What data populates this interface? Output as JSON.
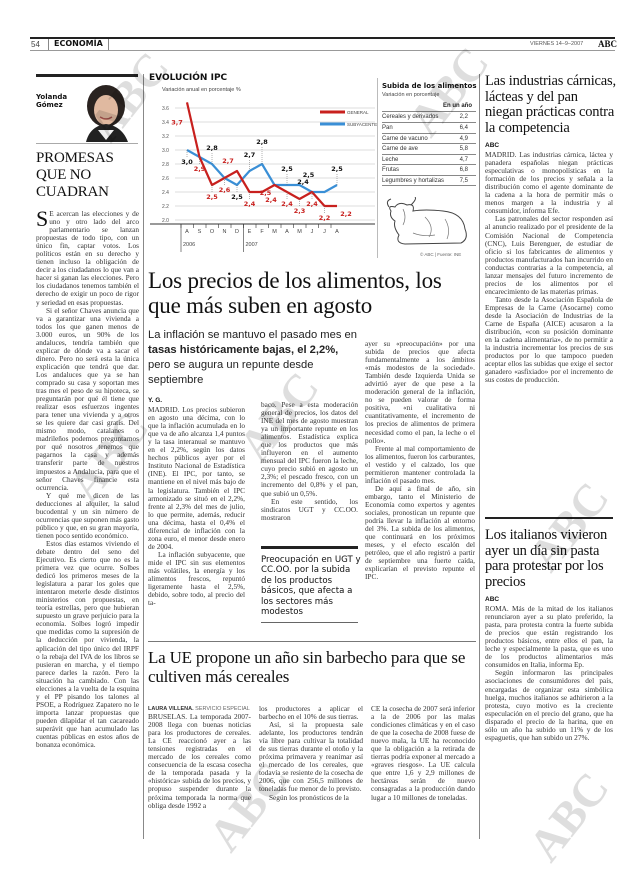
{
  "header": {
    "page_number": "54",
    "section": "ECONOMÍA",
    "date": "VIERNES 14–9–2007",
    "logo": "ABC"
  },
  "watermark": "ABC",
  "column": {
    "author": "Yolanda Gómez",
    "title": "PROMESAS QUE NO CUADRAN",
    "dropcap": "S",
    "paragraphs": [
      "E acercan las elecciones y de uno y otro lado del arco parlamentario se lanzan propuestas de todo tipo, con un único fin, captar votos. Los políticos están en su derecho y tienen incluso la obligación de decir a los ciudadanos lo que van a hacer si ganan las elecciones. Pero los ciudadanos tenemos también el derecho de exigir un poco de rigor y seriedad en esas propuestas.",
      "Si el señor Chaves anuncia que va a garantizar una vivienda a todos los que ganen menos de 3.000 euros, un 90% de los andaluces, tendría también que explicar de dónde va a sacar el dinero. Pero no será esta la única explicación que tendrá que dar. Los andaluces que ya se han comprado su casa y soportan mes tras mes el peso de su hipoteca, se preguntarán por qué él tiene que realizar esos esfuerzos ingentes para tener una vivienda y a otros se les quiere dar casi gratis. Del mismo modo, catalanes o madrileños podemos preguntarnos por qué nosotros tenemos que pagarnos la casa y además transferir parte de nuestros impuestos a Andalucía, para que el señor Chaves financie esta ocurrencia.",
      "Y qué me dicen de las deducciones al alquiler, la salud bucodental y un sin número de ocurrencias que suponen más gasto público y que, en su gran mayoría, tienen poco sentido económico.",
      "Estos días estamos viviendo el debate dentro del seno del Ejecutivo. Es cierto que no es la primera vez que ocurre. Solbes dedicó los primeros meses de la legislatura a parar los goles que intentaron meterle desde distintos ministerios con propuestas, en teoría estrellas, pero que hubieran supuesto un grave perjuicio para la economía. Solbes logró impedir que medidas como la supresión de la deducción por vivienda, la aplicación del tipo único del IRPF o la rebaja del IVA de los libros se pusieran en marcha, y el tiempo parece darles la razón. Pero la situación ha cambiado. Con las elecciones a la vuelta de la esquina y el PP pisando los talones al PSOE, a Rodríguez Zapatero no le importa lanzar propuestas que pueden dilapidar el tan cacareado superávit que han acumulado las cuentas públicas en estos años de bonanza económica."
    ]
  },
  "chart_data": {
    "type": "line",
    "title": "EVOLUCIÓN IPC",
    "subtitle": "Variación anual en porcentaje %",
    "categories": [
      "A",
      "S",
      "O",
      "N",
      "D",
      "E",
      "F",
      "M",
      "A",
      "M",
      "J",
      "J",
      "A"
    ],
    "years": [
      "2006",
      "2007"
    ],
    "ylim": [
      2.0,
      3.6
    ],
    "yticks": [
      "3.6",
      "3.4",
      "3.2",
      "3.0",
      "2.8",
      "2.6",
      "2.4",
      "2.2",
      "2.0"
    ],
    "grid": true,
    "legend": "top-right",
    "series": [
      {
        "name": "GENERAL",
        "color": "#c8201e",
        "values": [
          3.7,
          2.9,
          2.5,
          2.6,
          2.7,
          2.4,
          2.4,
          2.5,
          2.4,
          2.3,
          2.4,
          2.2,
          2.2
        ],
        "labels": [
          "3,7",
          "2,9",
          "2,5",
          "2,6",
          "2,7",
          "2,4",
          "2,4",
          "2,5",
          "2,4",
          "2,3",
          "2,4",
          "2,2",
          "2,2"
        ]
      },
      {
        "name": "SUBYACENTE",
        "color": "#3a8fd6",
        "values": [
          3.0,
          2.9,
          2.8,
          2.6,
          2.5,
          2.7,
          2.8,
          2.5,
          2.5,
          2.5,
          2.4,
          2.4,
          2.5
        ],
        "labels": [
          "3,0",
          null,
          "2,8",
          null,
          "2,5",
          "2,7",
          "2,8",
          null,
          "2,5",
          "2,5",
          "2,4",
          null,
          "2,5"
        ]
      }
    ]
  },
  "food_table": {
    "title": "Subida de los alimentos",
    "subtitle": "Variación en porcentaje",
    "column_header": "En un año",
    "rows": [
      {
        "label": "Cereales y derivados",
        "value": "2,2"
      },
      {
        "label": "Pan",
        "value": "6,4"
      },
      {
        "label": "Carne de vacuno",
        "value": "4,9"
      },
      {
        "label": "Carne de ave",
        "value": "5,8"
      },
      {
        "label": "Leche",
        "value": "4,7"
      },
      {
        "label": "Frutas",
        "value": "6,8"
      },
      {
        "label": "Legumbres y hortalizas",
        "value": "7,5"
      }
    ],
    "credit": "© ABC | Fuente: INE"
  },
  "main": {
    "headline": "Los precios de los alimentos, los que más suben en agosto",
    "deck_pre": "La inflación se mantuvo el pasado mes en ",
    "deck_bold": "tasas históricamente bajas, el 2,2%,",
    "deck_post": " pero se augura un repunte desde septiembre",
    "signature": "Y. G.",
    "col1": [
      "MADRID. Los precios subieron en agosto una décima, con lo que la inflación acumulada en lo que va de año alcanza 1,4 puntos y la tasa interanual se mantuvo en el 2,2%, según los datos hechos públicos ayer por el Instituto Nacional de Estadística (INE). El IPC, por tanto, se mantiene en el nivel más bajo de la legislatura. También el IPC armonizado se situó en el 2,2%, frente al 2,3% del mes de julio, lo que permite, además, reducir una décima, hasta el 0,4% el diferencial de inflación con la zona euro, el menor desde enero de 2004.",
      "La inflación subyacente, que mide el IPC sin sus elementos más volátiles, la energía y los alimentos frescos, repuntó ligeramente hasta el 2,5%, debido, sobre todo, al precio del ta-"
    ],
    "col2": [
      "baco. Pese a esta moderación general de precios, los datos del INE del mes de agosto muestran ya un importante repunte en los alimentos. Estadística explica que los productos que más influyeron en el aumento mensual del IPC fueron la leche, cuyo precio subió en agosto un 2,3%; el pescado fresco, con un incremento del 0,8% y el pan, que subió un 0,5%.",
      "En este sentido, los sindicatos UGT y CC.OO. mostraron"
    ],
    "col3": [
      "ayer su «preocupación» por una subida de precios que afecta fundamentalmente a los ámbitos «más modestos de la sociedad». También desde Izquierda Unida se advirtió ayer de que pese a la moderación general de la inflación, no se pueden valorar de forma positiva, «ni cualitativa ni cuantitativamente, el incremento de los precios de alimentos de primera necesidad como el pan, la leche o el pollo».",
      "Frente al mal comportamiento de los alimentos, fueron los carburantes, el vestido y el calzado, los que permitieron mantener controlada la inflación el pasado mes.",
      "De aquí a final de año, sin embargo, tanto el Ministerio de Economía como expertos y agentes sociales, pronostican un repunte que podría llevar la inflación al entorno del 3%. La subida de los alimentos, que continuará en los próximos meses, y el efecto escalón del petróleo, que el año registró a partir de septiembre una fuerte caída, explicarían el previsto repunte el IPC."
    ],
    "pullquote": "Preocupación en UGT y CC.OO. por la subida de los productos básicos, que afecta a los sectores más modestos"
  },
  "ue": {
    "headline": "La UE propone un año sin barbecho para que se cultiven más cereales",
    "byline": "LAURA VILLENA.",
    "byline_role": "SERVICIO ESPECIAL",
    "col1": [
      "BRUSELAS. La temporada 2007-2008 llega con buenas noticias para los productores de cereales. La CE reaccionó ayer a las tensiones registradas en el mercado de los cereales como consecuencia de la escasa cosecha de la temporada pasada y la «histórica» subida de los precios, y propuso suspender durante la próxima temporada la norma que obliga desde 1992 a"
    ],
    "col2": [
      "los productores a aplicar el barbecho en el 10% de sus tierras.",
      "Así, si la propuesta sale adelante, los productores tendrán vía libre para cultivar la totalidad de sus tierras durante el otoño y la próxima primavera y reanimar así el mercado de los cereales, que todavía se resiente de la cosecha de 2006, que con 256,5 millones de toneladas fue menor de lo previsto.",
      "Según los pronósticos de la"
    ],
    "col3": [
      "CE la cosecha de 2007 será inferior a la de 2006 por las malas condiciones climáticas y en el caso de que la cosecha de 2008 fuese de nuevo mala, la UE ha reconocido que la obligación a la retirada de tierras podría exponer al mercado a «graves riesgos». La UE calcula que entre 1,6 y 2,9 millones de hectáreas serán de nuevo consagradas a la producción dando lugar a 10 millones de toneladas."
    ]
  },
  "industrias": {
    "headline": "Las industrias cárnicas, lácteas y del pan niegan prácticas contra la competencia",
    "signature": "ABC",
    "paragraphs": [
      "MADRID. Las industrias cárnica, láctea y panadera españolas niegan prácticas especulativas o monopolísticas en la formación de los precios y señala a la distribución como el agente dominante de la cadena a la hora de permitir más o menos margen a la industria y al consumidor, informa Efe.",
      "Las patronales del sector responden así al anuncio realizado por el presidente de la Comisión Nacional de Competencia (CNC), Luis Berenguer, de estudiar de oficio si los fabricantes de alimentos y productos manufacturados han incurrido en conductas contrarias a la competencia, al lanzar mensajes del futuro incremento de precios de los alimentos por el encarecimiento de las materias primas.",
      "Tanto desde la Asociación Española de Empresas de la Carne (Asocarne) como desde la Asociación de Industrias de la Carne de España (AICE) acusaron a la distribución, «con su posición dominante en la cadena alimentaria», de no permitir a la industria incrementar los precios de sus productos por lo que tampoco pueden aceptar ellos las subidas que exige el sector ganadero «asfixiado» por el incremento de sus costes de producción."
    ]
  },
  "italianos": {
    "headline": "Los italianos vivieron ayer un día sin pasta para protestar por los precios",
    "signature": "ABC",
    "paragraphs": [
      "ROMA. Más de la mitad de los italianos renunciaron ayer a su plato preferido, la pasta, para protesta contra la fuerte subida de precios que están registrando los productos básicos, entre ellos el pan, la leche y especialmente la pasta, que es uno de los productos alimentarios más consumidos en Italia, informa Ep.",
      "Según informaron las principales asociaciones de consumidores del país, encargadas de organizar esta simbólica huelga, muchos italianos se adhirieron a la protesta, cuyo motivo es la creciente especulación en el precio del grano, que ha disparado el precio de la harina, que en sólo un año ha subido un 11% y de los espaguetis, que han subido un 27%."
    ]
  }
}
